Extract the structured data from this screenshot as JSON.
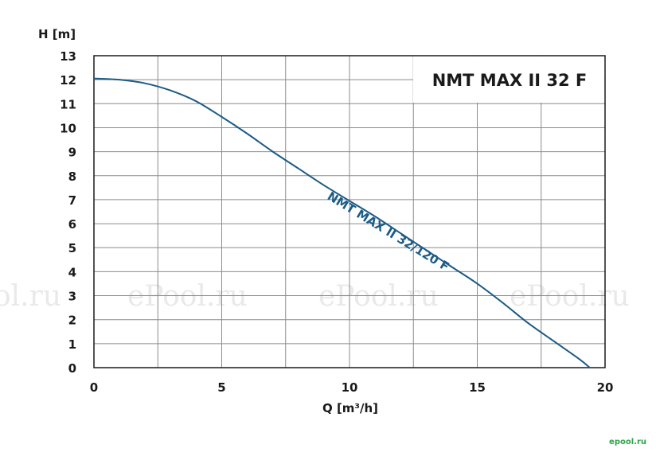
{
  "chart_data": {
    "type": "line",
    "title": "NMT MAX II 32 F",
    "xlabel": "Q [m³/h]",
    "ylabel": "H [m]",
    "xlim": [
      0,
      20
    ],
    "ylim": [
      0,
      13
    ],
    "x_ticks": [
      "0",
      "5",
      "10",
      "15",
      "20"
    ],
    "y_ticks": [
      "0",
      "1",
      "2",
      "3",
      "4",
      "5",
      "6",
      "7",
      "8",
      "9",
      "10",
      "11",
      "12",
      "13"
    ],
    "grid": true,
    "series": [
      {
        "name": "NMT MAX II 32/120 F",
        "x": [
          0,
          1,
          2,
          3,
          4,
          5,
          6,
          7,
          8,
          9,
          10,
          11,
          12,
          13,
          14,
          15,
          16,
          17,
          18,
          19,
          19.4
        ],
        "y": [
          12.05,
          12.0,
          11.85,
          11.55,
          11.1,
          10.45,
          9.75,
          9.0,
          8.3,
          7.6,
          6.95,
          6.3,
          5.6,
          4.9,
          4.2,
          3.5,
          2.7,
          1.85,
          1.1,
          0.35,
          0
        ]
      }
    ],
    "line_color": "#1b5b86"
  },
  "watermarks": [
    "ol.ru",
    "ePool.ru",
    "ePool.ru",
    "ePool.ru"
  ],
  "corner_watermark": "epool.ru"
}
